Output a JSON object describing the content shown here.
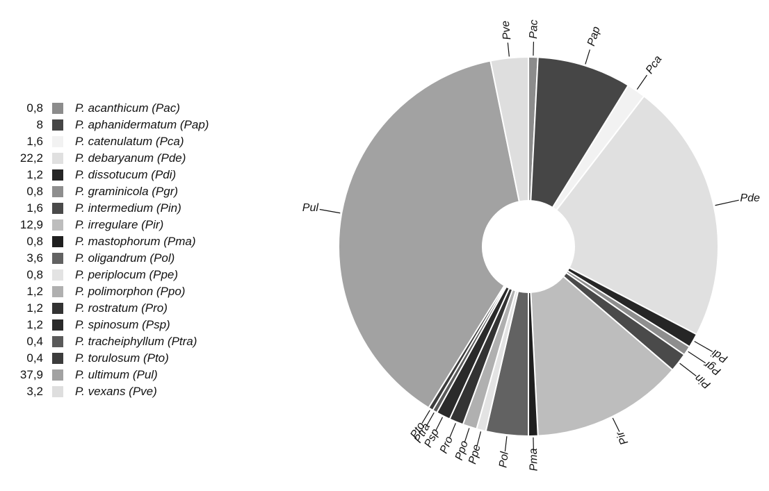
{
  "chart_data": {
    "type": "pie",
    "donut": true,
    "start_angle_deg": 0,
    "direction": "clockwise",
    "slices": [
      {
        "value": 0.8,
        "label": "P. acanthicum  (Pac)",
        "abbr": "Pac",
        "value_text": "0,8",
        "color": "#8c8c8c"
      },
      {
        "value": 8,
        "label": "P. aphanidermatum (Pap)",
        "abbr": "Pap",
        "value_text": "8",
        "color": "#464646"
      },
      {
        "value": 1.6,
        "label": "P. catenulatum (Pca)",
        "abbr": "Pca",
        "value_text": "1,6",
        "color": "#f2f2f2"
      },
      {
        "value": 22.2,
        "label": "P. debaryanum (Pde)",
        "abbr": "Pde",
        "value_text": "22,2",
        "color": "#e0e0e0"
      },
      {
        "value": 1.2,
        "label": "P. dissotucum (Pdi)",
        "abbr": "Pdi",
        "value_text": "1,2",
        "color": "#262626"
      },
      {
        "value": 0.8,
        "label": "P. graminicola (Pgr)",
        "abbr": "Pgr",
        "value_text": "0,8",
        "color": "#8e8e8e"
      },
      {
        "value": 1.6,
        "label": "P. intermedium (Pin)",
        "abbr": "Pin",
        "value_text": "1,6",
        "color": "#4a4a4a"
      },
      {
        "value": 12.9,
        "label": "P. irregulare (Pir)",
        "abbr": "Pir",
        "value_text": "12,9",
        "color": "#bdbdbd"
      },
      {
        "value": 0.8,
        "label": "P. mastophorum (Pma)",
        "abbr": "Pma",
        "value_text": "0,8",
        "color": "#1f1f1f"
      },
      {
        "value": 3.6,
        "label": "P. oligandrum (Pol)",
        "abbr": "Pol",
        "value_text": "3,6",
        "color": "#626262"
      },
      {
        "value": 0.8,
        "label": "P. periplocum (Ppe)",
        "abbr": "Ppe",
        "value_text": "0,8",
        "color": "#e3e3e3"
      },
      {
        "value": 1.2,
        "label": "P. polimorphon (Ppo)",
        "abbr": "Ppo",
        "value_text": "1,2",
        "color": "#b0b0b0"
      },
      {
        "value": 1.2,
        "label": "P. rostratum (Pro)",
        "abbr": "Pro",
        "value_text": "1,2",
        "color": "#333333"
      },
      {
        "value": 1.2,
        "label": "P. spinosum (Psp)",
        "abbr": "Psp",
        "value_text": "1,2",
        "color": "#2a2a2a"
      },
      {
        "value": 0.4,
        "label": "P. tracheiphyllum (Ptra)",
        "abbr": "Ptra",
        "value_text": "0,4",
        "color": "#5a5a5a"
      },
      {
        "value": 0.4,
        "label": "P. torulosum (Pto)",
        "abbr": "Pto",
        "value_text": "0,4",
        "color": "#3c3c3c"
      },
      {
        "value": 37.9,
        "label": "P. ultimum (Pul)",
        "abbr": "Pul",
        "value_text": "37,9",
        "color": "#a2a2a2"
      },
      {
        "value": 3.2,
        "label": "P. vexans (Pve)",
        "abbr": "Pve",
        "value_text": "3,2",
        "color": "#dedede"
      }
    ],
    "legend_placement": "left"
  }
}
